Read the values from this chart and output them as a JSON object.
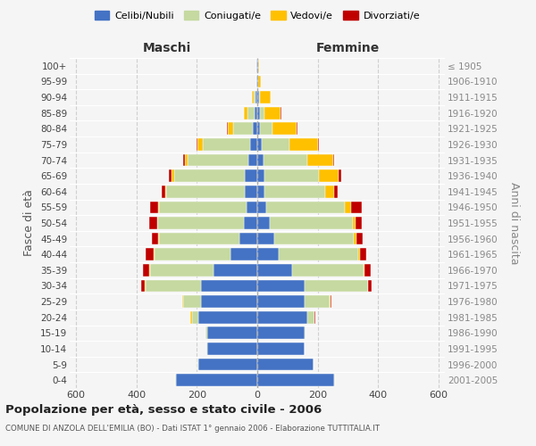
{
  "age_groups": [
    "0-4",
    "5-9",
    "10-14",
    "15-19",
    "20-24",
    "25-29",
    "30-34",
    "35-39",
    "40-44",
    "45-49",
    "50-54",
    "55-59",
    "60-64",
    "65-69",
    "70-74",
    "75-79",
    "80-84",
    "85-89",
    "90-94",
    "95-99",
    "100+"
  ],
  "birth_years": [
    "2001-2005",
    "1996-2000",
    "1991-1995",
    "1986-1990",
    "1981-1985",
    "1976-1980",
    "1971-1975",
    "1966-1970",
    "1961-1965",
    "1956-1960",
    "1951-1955",
    "1946-1950",
    "1941-1945",
    "1936-1940",
    "1931-1935",
    "1926-1930",
    "1921-1925",
    "1916-1920",
    "1911-1915",
    "1906-1910",
    "≤ 1905"
  ],
  "male": {
    "celibi": [
      270,
      195,
      165,
      165,
      195,
      185,
      185,
      145,
      90,
      60,
      45,
      35,
      40,
      40,
      30,
      25,
      15,
      8,
      5,
      2,
      2
    ],
    "coniugati": [
      2,
      2,
      2,
      5,
      20,
      60,
      185,
      210,
      250,
      265,
      285,
      290,
      260,
      235,
      200,
      155,
      65,
      25,
      8,
      2,
      2
    ],
    "vedovi": [
      0,
      0,
      0,
      0,
      5,
      2,
      2,
      2,
      2,
      2,
      2,
      3,
      5,
      8,
      8,
      18,
      18,
      10,
      5,
      0,
      0
    ],
    "divorziati": [
      0,
      0,
      0,
      0,
      2,
      2,
      12,
      20,
      28,
      20,
      25,
      25,
      12,
      8,
      8,
      2,
      2,
      2,
      0,
      0,
      0
    ]
  },
  "female": {
    "nubili": [
      255,
      185,
      155,
      155,
      165,
      155,
      155,
      115,
      70,
      55,
      40,
      30,
      25,
      25,
      20,
      15,
      10,
      8,
      5,
      2,
      2
    ],
    "coniugate": [
      2,
      2,
      2,
      5,
      25,
      85,
      210,
      235,
      265,
      265,
      275,
      260,
      200,
      180,
      145,
      90,
      40,
      15,
      5,
      2,
      2
    ],
    "vedove": [
      0,
      0,
      0,
      0,
      0,
      2,
      2,
      5,
      5,
      8,
      10,
      20,
      30,
      65,
      85,
      95,
      80,
      55,
      35,
      8,
      2
    ],
    "divorziate": [
      0,
      0,
      0,
      0,
      2,
      2,
      12,
      20,
      20,
      20,
      20,
      35,
      12,
      8,
      5,
      5,
      2,
      2,
      0,
      0,
      0
    ]
  },
  "colors": {
    "celibi": "#4472c4",
    "coniugati": "#c5d9a0",
    "vedovi": "#ffc000",
    "divorziati": "#c00000"
  },
  "xlim": 620,
  "title": "Popolazione per età, sesso e stato civile - 2006",
  "subtitle": "COMUNE DI ANZOLA DELL'EMILIA (BO) - Dati ISTAT 1° gennaio 2006 - Elaborazione TUTTITALIA.IT",
  "ylabel_left": "Fasce di età",
  "ylabel_right": "Anni di nascita",
  "bg_color": "#f5f5f5",
  "grid_color": "#cccccc"
}
